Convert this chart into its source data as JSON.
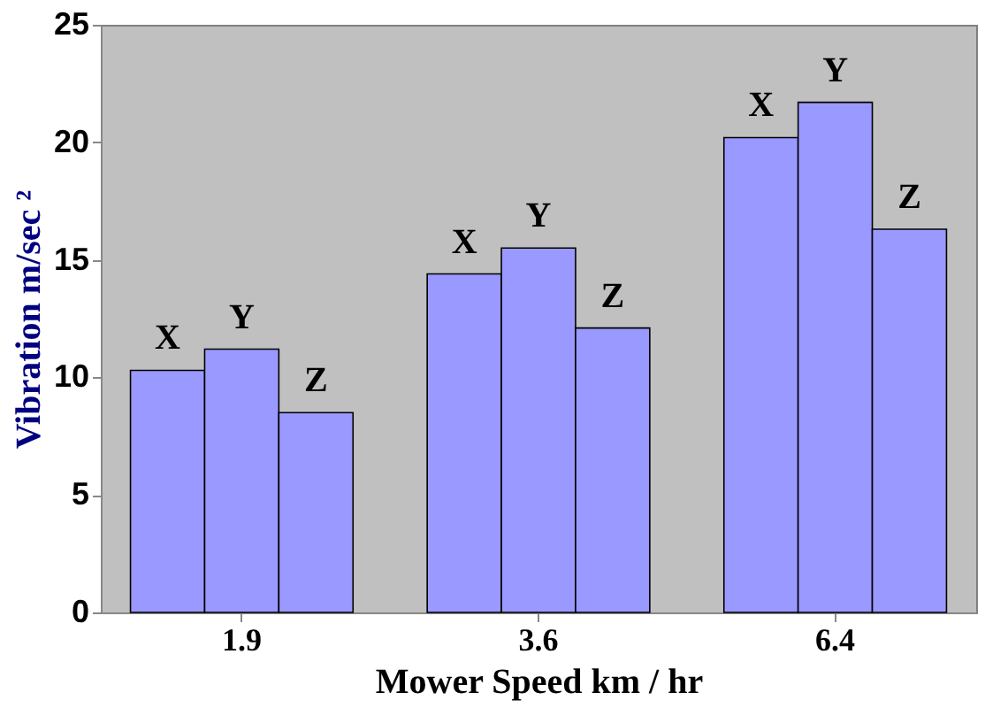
{
  "chart_data": {
    "type": "bar",
    "xlabel": "Mower Speed  km / hr",
    "ylabel": "Vibration    m/sec ²",
    "categories": [
      "1.9",
      "3.6",
      "6.4"
    ],
    "series": [
      {
        "name": "X",
        "color": "#9999ff",
        "values": [
          10.3,
          14.4,
          20.2
        ]
      },
      {
        "name": "Y",
        "color": "#9999ff",
        "values": [
          11.2,
          15.5,
          21.7
        ]
      },
      {
        "name": "Z",
        "color": "#9999ff",
        "values": [
          8.5,
          12.1,
          16.3
        ]
      }
    ],
    "ylim": [
      0,
      25
    ],
    "yticks": [
      0,
      5,
      10,
      15,
      20,
      25
    ],
    "grid": false,
    "legend": false
  }
}
